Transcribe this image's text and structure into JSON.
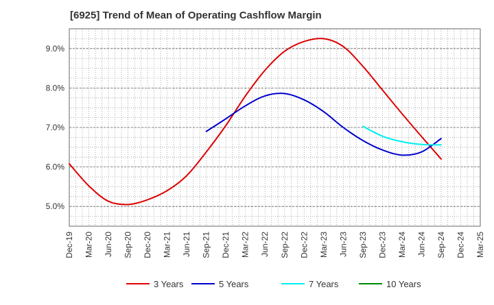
{
  "chart_data": {
    "type": "line",
    "title": "[6925]  Trend of Mean of Operating Cashflow Margin",
    "xlabel": "",
    "ylabel": "",
    "y_unit": "%",
    "ylim": [
      4.5,
      9.5
    ],
    "yticks": [
      5.0,
      6.0,
      7.0,
      8.0,
      9.0
    ],
    "ytick_labels": [
      "5.0%",
      "6.0%",
      "7.0%",
      "8.0%",
      "9.0%"
    ],
    "x_tick_labels": [
      "Dec-19",
      "Mar-20",
      "Jun-20",
      "Sep-20",
      "Dec-20",
      "Mar-21",
      "Jun-21",
      "Sep-21",
      "Dec-21",
      "Mar-22",
      "Jun-22",
      "Sep-22",
      "Dec-22",
      "Mar-23",
      "Jun-23",
      "Sep-23",
      "Dec-23",
      "Mar-24",
      "Jun-24",
      "Sep-24",
      "Dec-24",
      "Mar-25"
    ],
    "x_range_months": [
      "2019-12",
      "2025-03"
    ],
    "grid": true,
    "legend_position": "bottom",
    "series": [
      {
        "name": "3 Years",
        "color": "#dd0000",
        "points": [
          [
            "2019-12",
            6.08
          ],
          [
            "2020-03",
            5.52
          ],
          [
            "2020-06",
            5.13
          ],
          [
            "2020-09",
            5.05
          ],
          [
            "2020-12",
            5.17
          ],
          [
            "2021-03",
            5.4
          ],
          [
            "2021-06",
            5.78
          ],
          [
            "2021-09",
            6.38
          ],
          [
            "2021-12",
            7.05
          ],
          [
            "2022-03",
            7.8
          ],
          [
            "2022-06",
            8.45
          ],
          [
            "2022-09",
            8.93
          ],
          [
            "2022-12",
            9.18
          ],
          [
            "2023-03",
            9.25
          ],
          [
            "2023-06",
            9.05
          ],
          [
            "2023-09",
            8.55
          ],
          [
            "2023-12",
            7.95
          ],
          [
            "2024-03",
            7.35
          ],
          [
            "2024-06",
            6.77
          ],
          [
            "2024-09",
            6.2
          ]
        ]
      },
      {
        "name": "5 Years",
        "color": "#0000cc",
        "points": [
          [
            "2021-09",
            6.9
          ],
          [
            "2021-12",
            7.22
          ],
          [
            "2022-03",
            7.55
          ],
          [
            "2022-06",
            7.8
          ],
          [
            "2022-09",
            7.86
          ],
          [
            "2022-12",
            7.7
          ],
          [
            "2023-03",
            7.4
          ],
          [
            "2023-06",
            7.0
          ],
          [
            "2023-09",
            6.67
          ],
          [
            "2023-12",
            6.43
          ],
          [
            "2024-03",
            6.3
          ],
          [
            "2024-06",
            6.38
          ],
          [
            "2024-09",
            6.72
          ]
        ]
      },
      {
        "name": "7 Years",
        "color": "#00eeee",
        "points": [
          [
            "2023-09",
            7.03
          ],
          [
            "2023-12",
            6.78
          ],
          [
            "2024-03",
            6.64
          ],
          [
            "2024-06",
            6.57
          ],
          [
            "2024-09",
            6.56
          ]
        ]
      },
      {
        "name": "10 Years",
        "color": "#008800",
        "points": []
      }
    ]
  }
}
